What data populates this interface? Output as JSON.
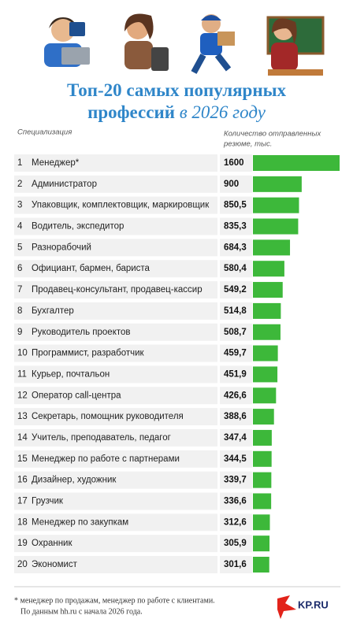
{
  "chart_data": {
    "type": "bar",
    "orientation": "horizontal",
    "title": [
      "Топ-20 самых популярных",
      "профессий",
      "в 2026 году"
    ],
    "category_header": "Специализация",
    "value_header": [
      "Количество отправленных",
      "резюме, тыс."
    ],
    "ranks": [
      1,
      2,
      3,
      4,
      5,
      6,
      7,
      8,
      9,
      10,
      11,
      12,
      13,
      14,
      15,
      16,
      17,
      18,
      19,
      20
    ],
    "categories": [
      "Менеджер*",
      "Администратор",
      "Упаковщик, комплектовщик, маркировщик",
      "Водитель, экспедитор",
      "Разнорабочий",
      "Официант, бармен, бариста",
      "Продавец-консультант, продавец-кассир",
      "Бухгалтер",
      "Руководитель проектов",
      "Программист, разработчик",
      "Курьер, почтальон",
      "Оператор call-центра",
      "Секретарь, помощник руководителя",
      "Учитель, преподаватель, педагог",
      "Менеджер по работе с партнерами",
      "Дизайнер, художник",
      "Грузчик",
      "Менеджер по закупкам",
      "Охранник",
      "Экономист"
    ],
    "values": [
      1600,
      900,
      850.5,
      835.3,
      684.3,
      580.4,
      549.2,
      514.8,
      508.7,
      459.7,
      451.9,
      426.6,
      388.6,
      347.4,
      344.5,
      339.7,
      336.6,
      312.6,
      305.9,
      301.6
    ],
    "value_labels": [
      "1600",
      "900",
      "850,5",
      "835,3",
      "684,3",
      "580,4",
      "549,2",
      "514,8",
      "508,7",
      "459,7",
      "451,9",
      "426,6",
      "388,6",
      "347,4",
      "344,5",
      "339,7",
      "336,6",
      "312,6",
      "305,9",
      "301,6"
    ],
    "color": "#3db83a",
    "footnote": [
      "* менеджер по продажам, менеджер по работе с клиентами.",
      "По данным hh.ru с начала 2026 года."
    ],
    "logo": "KP.RU"
  }
}
